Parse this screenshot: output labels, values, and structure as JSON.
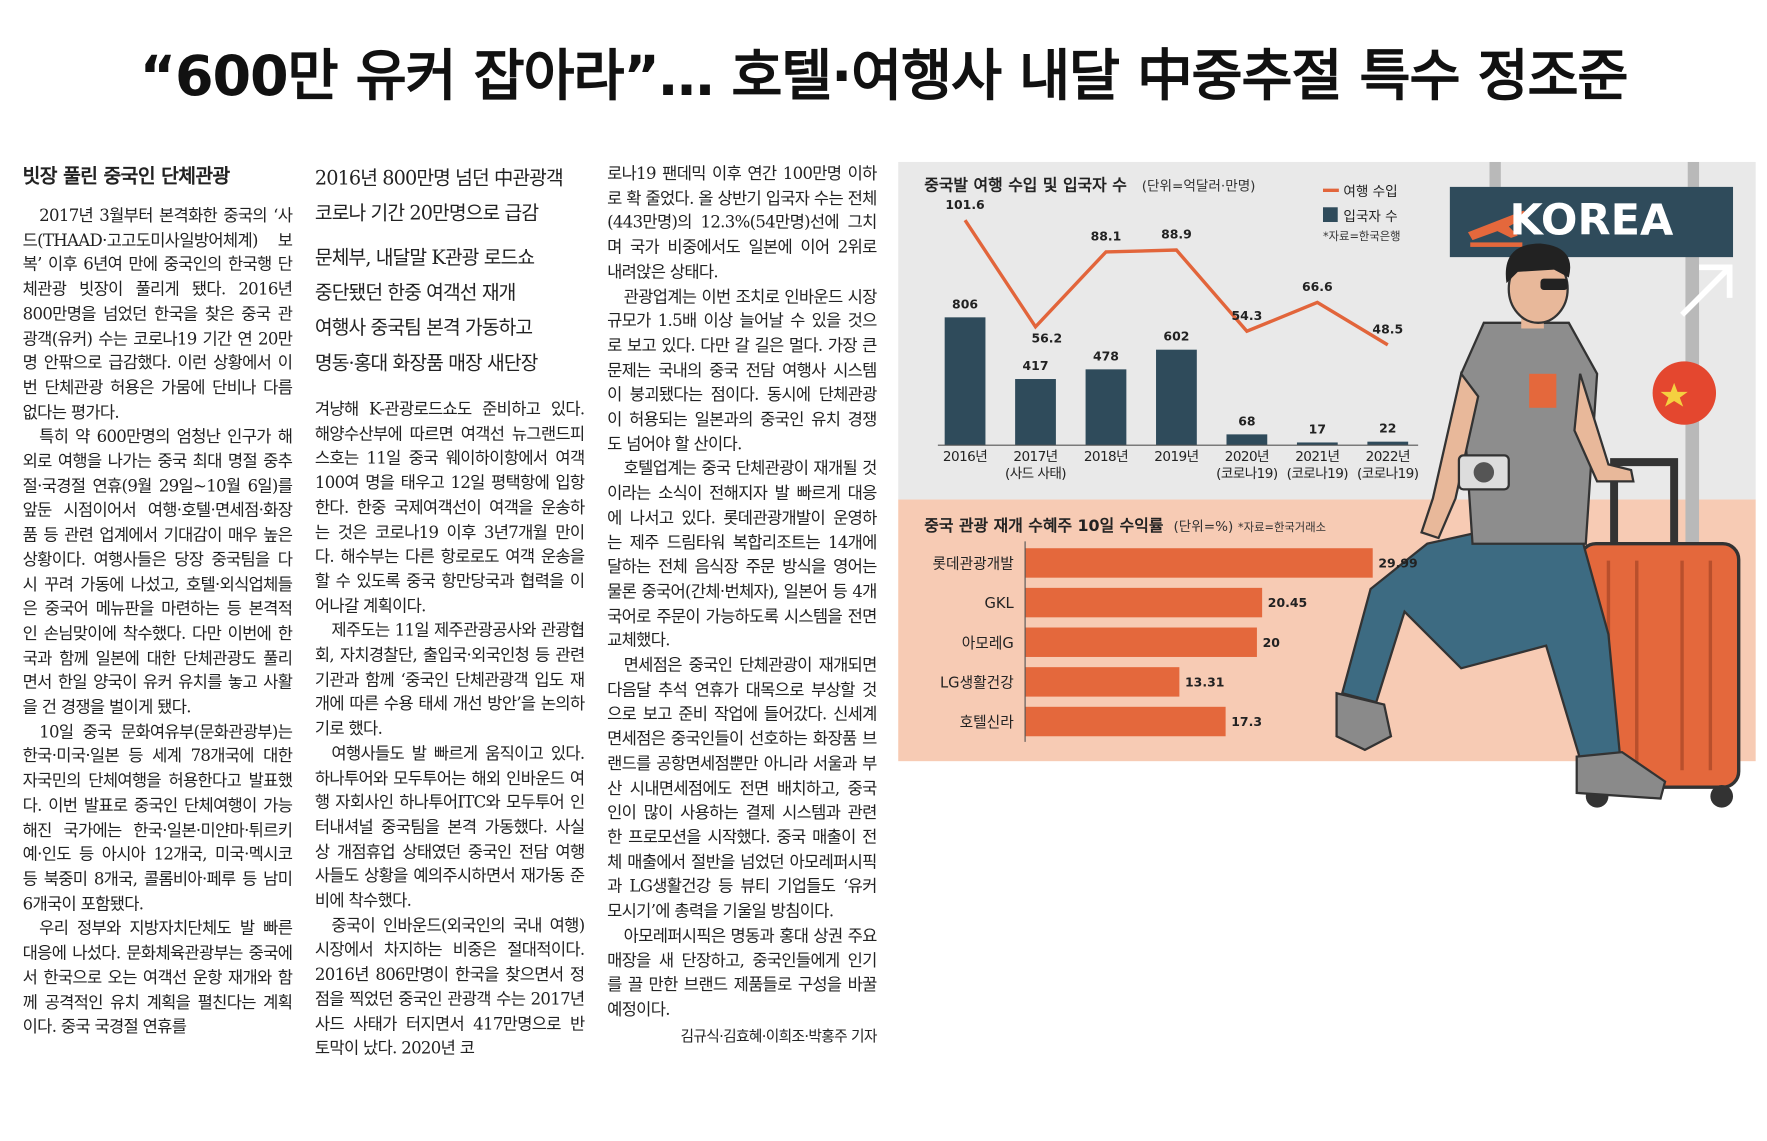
{
  "headline": "“600만 유커 잡아라”… 호텔·여행사 내달 中중추절 특수 정조준",
  "columns": [
    {
      "subhead": "빗장 풀린 중국인 단체관광",
      "paragraphs": [
        "2017년 3월부터 본격화한 중국의 ‘사드(THAAD·고고도미사일방어체계) 보복’ 이후 6년여 만에 중국인의 한국행 단체관광 빗장이 풀리게 됐다. 2016년 800만명을 넘었던 한국을 찾은 중국 관광객(유커) 수는 코로나19 기간 연 20만명 안팎으로 급감했다. 이런 상황에서 이번 단체관광 허용은 가뭄에 단비나 다름없다는 평가다.",
        "특히 약 600만명의 엄청난 인구가 해외로 여행을 나가는 중국 최대 명절 중추절·국경절 연휴(9월 29일~10월 6일)를 앞둔 시점이어서 여행·호텔·면세점·화장품 등 관련 업계에서 기대감이 매우 높은 상황이다. 여행사들은 당장 중국팀을 다시 꾸려 가동에 나섰고, 호텔·외식업체들은 중국어 메뉴판을 마련하는 등 본격적인 손님맞이에 착수했다. 다만 이번에 한국과 함께 일본에 대한 단체관광도 풀리면서 한일 양국이 유커 유치를 놓고 사활을 건 경쟁을 벌이게 됐다.",
        "10일 중국 문화여유부(문화관광부)는 한국·미국·일본 등 세계 78개국에 대한 자국민의 단체여행을 허용한다고 발표했다. 이번 발표로 중국인 단체여행이 가능해진 국가에는 한국·일본·미얀마·튀르키예·인도 등 아시아 12개국, 미국·멕시코 등 북중미 8개국, 콜롬비아·페루 등 남미 6개국이 포함됐다.",
        "우리 정부와 지방자치단체도 발 빠른 대응에 나섰다. 문화체육관광부는 중국에서 한국으로 오는 여객선 운항 재개와 함께 공격적인 유치 계획을 펼친다는 계획이다. 중국 국경절 연휴를"
      ]
    },
    {
      "deck": [
        [
          "2016년 800만명 넘던 中관광객",
          "코로나 기간 20만명으로 급감"
        ],
        [
          "문체부, 내달말 K관광 로드쇼",
          "중단됐던 한중 여객선 재개",
          "여행사 중국팀 본격 가동하고",
          "명동·홍대 화장품 매장 새단장"
        ]
      ],
      "paragraphs": [
        "겨냥해 K-관광로드쇼도 준비하고 있다. 해양수산부에 따르면 여객선 뉴그랜드피스호는 11일 중국 웨이하이항에서 여객 100여 명을 태우고 12일 평택항에 입항한다. 한중 국제여객선이 여객을 운송하는 것은 코로나19 이후 3년7개월 만이다. 해수부는 다른 항로로도 여객 운송을 할 수 있도록 중국 항만당국과 협력을 이어나갈 계획이다.",
        "제주도는 11일 제주관광공사와 관광협회, 자치경찰단, 출입국·외국인청 등 관련 기관과 함께 ‘중국인 단체관광객 입도 재개에 따른 수용 태세 개선 방안’을 논의하기로 했다.",
        "여행사들도 발 빠르게 움직이고 있다. 하나투어와 모두투어는 해외 인바운드 여행 자회사인 하나투어ITC와 모두투어 인터내셔널 중국팀을 본격 가동했다. 사실상 개점휴업 상태였던 중국인 전담 여행사들도 상황을 예의주시하면서 재가동 준비에 착수했다.",
        "중국이 인바운드(외국인의 국내 여행) 시장에서 차지하는 비중은 절대적이다. 2016년 806만명이 한국을 찾으면서 정점을 찍었던 중국인 관광객 수는 2017년 사드 사태가 터지면서 417만명으로 반 토막이 났다. 2020년 코"
      ]
    },
    {
      "paragraphs": [
        "로나19 팬데믹 이후 연간 100만명 이하로 확 줄었다. 올 상반기 입국자 수는 전체(443만명)의 12.3%(54만명)선에 그치며 국가 비중에서도 일본에 이어 2위로 내려앉은 상태다.",
        "관광업계는 이번 조치로 인바운드 시장 규모가 1.5배 이상 늘어날 수 있을 것으로 보고 있다. 다만 갈 길은 멀다. 가장 큰 문제는 국내의 중국 전담 여행사 시스템이 붕괴됐다는 점이다. 동시에 단체관광이 허용되는 일본과의 중국인 유치 경쟁도 넘어야 할 산이다.",
        "호텔업계는 중국 단체관광이 재개될 것이라는 소식이 전해지자 발 빠르게 대응에 나서고 있다. 롯데관광개발이 운영하는 제주 드림타워 복합리조트는 14개에 달하는 전체 음식장 주문 방식을 영어는 물론 중국어(간체·번체자), 일본어 등 4개 국어로 주문이 가능하도록 시스템을 전면 교체했다.",
        "면세점은 중국인 단체관광이 재개되면 다음달 추석 연휴가 대목으로 부상할 것으로 보고 준비 작업에 들어갔다. 신세계면세점은 중국인들이 선호하는 화장품 브랜드를 공항면세점뿐만 아니라 서울과 부산 시내면세점에도 전면 배치하고, 중국인이 많이 사용하는 결제 시스템과 관련한 프로모션을 시작했다. 중국 매출이 전체 매출에서 절반을 넘었던 아모레퍼시픽과 LG생활건강 등 뷰티 기업들도 ‘유커 모시기’에 총력을 기울일 방침이다.",
        "아모레퍼시픽은 명동과 홍대 상권 주요 매장을 새 단장하고, 중국인들에게 인기를 끌 만한 브랜드 제품들로 구성을 바꿀 예정이다."
      ],
      "byline": "김규식·김효혜·이희조·박홍주 기자"
    }
  ],
  "chart_data": [
    {
      "type": "bar",
      "title": "중국발 여행 수입 및 입국자 수",
      "unit": "(단위=억달러·만명)",
      "source": "*자료=한국은행",
      "categories": [
        "2016년",
        "2017년\n(사드 사태)",
        "2018년",
        "2019년",
        "2020년\n(코로나19)",
        "2021년\n(코로나19)",
        "2022년\n(코로나19)"
      ],
      "series": [
        {
          "name": "여행 수입",
          "type": "line",
          "axis": "y2",
          "color": "#e2653b",
          "values": [
            101.6,
            56.2,
            88.1,
            88.9,
            54.3,
            66.6,
            48.5
          ]
        },
        {
          "name": "입국자 수",
          "type": "bar",
          "color": "#2f4b5b",
          "values": [
            806,
            417,
            478,
            602,
            68,
            17,
            22
          ]
        }
      ],
      "ylim": [
        0,
        1600
      ],
      "y2lim": [
        0,
        110
      ]
    },
    {
      "type": "hbar",
      "title": "중국 관광 재개 수혜주 10일 수익률",
      "unit": "(단위=%)",
      "source": "*자료=한국거래소",
      "categories": [
        "롯데관광개발",
        "GKL",
        "아모레G",
        "LG생활건강",
        "호텔신라"
      ],
      "values": [
        29.99,
        20.45,
        20,
        13.31,
        17.3
      ],
      "color": "#e4683c",
      "xlim": [
        0,
        30
      ]
    }
  ],
  "illustration": {
    "sign": "KOREA"
  }
}
